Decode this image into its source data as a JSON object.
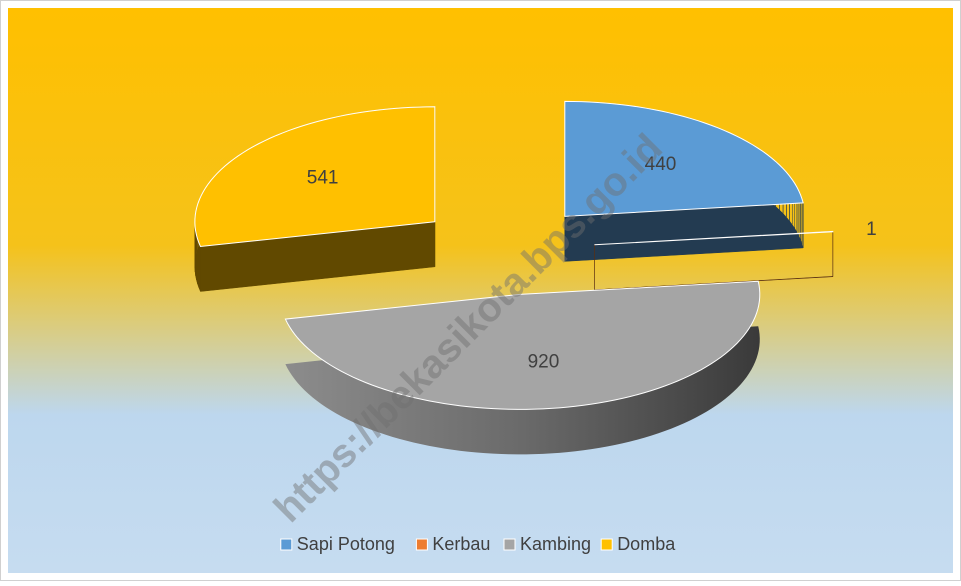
{
  "chart_data": {
    "type": "pie",
    "categories": [
      "Sapi Potong",
      "Kerbau",
      "Kambing",
      "Domba"
    ],
    "values": [
      440,
      1,
      920,
      541
    ],
    "colors": [
      "#5b9bd5",
      "#ed7d31",
      "#a5a5a5",
      "#ffc000"
    ],
    "legend": "bottom"
  },
  "watermark": "https://bekasikota.bps.go.id"
}
